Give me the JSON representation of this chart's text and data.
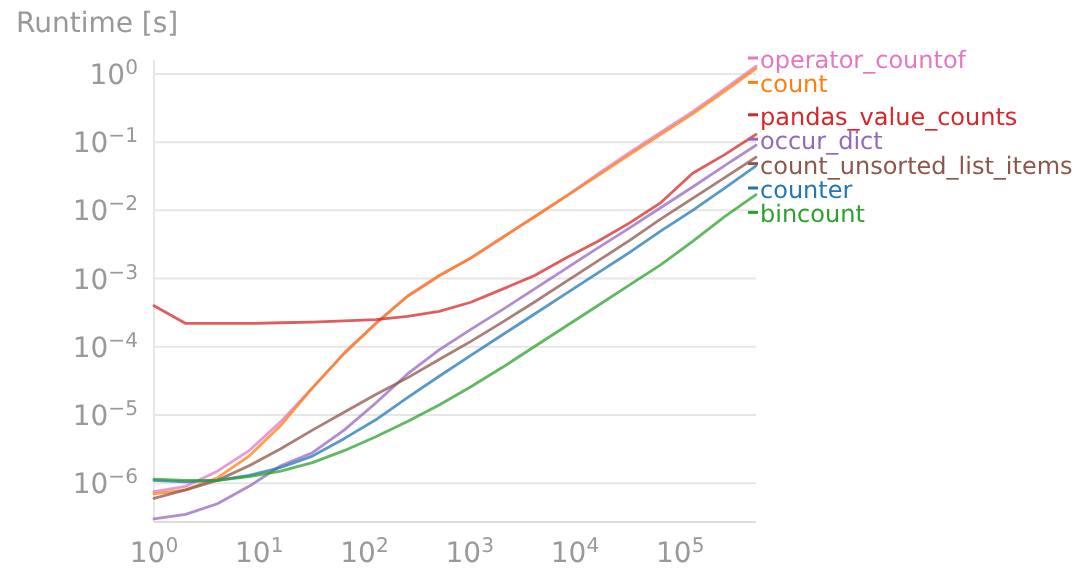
{
  "chart_data": {
    "type": "line",
    "title": "Runtime [s]",
    "log": "xy",
    "grid": "y",
    "legend": "right",
    "line_style": "solid",
    "marker": "none",
    "x": [
      1,
      2,
      4,
      8,
      16,
      32,
      64,
      128,
      256,
      512,
      1024,
      2048,
      4096,
      8192,
      16384,
      32768,
      65536,
      131072,
      262144,
      524288
    ],
    "xlim": [
      1,
      524288
    ],
    "ylim": [
      2.7e-07,
      1.6
    ],
    "xticks": [
      {
        "value": 1,
        "label": "10$^{0}$"
      },
      {
        "value": 10,
        "label": "10$^{1}$"
      },
      {
        "value": 100,
        "label": "10$^{2}$"
      },
      {
        "value": 1000,
        "label": "10$^{3}$"
      },
      {
        "value": 10000,
        "label": "10$^{4}$"
      },
      {
        "value": 100000,
        "label": "10$^{5}$"
      }
    ],
    "yticks": [
      {
        "value": 1e-06,
        "label": "10$^{−6}$"
      },
      {
        "value": 1e-05,
        "label": "10$^{−5}$"
      },
      {
        "value": 0.0001,
        "label": "10$^{−4}$"
      },
      {
        "value": 0.001,
        "label": "10$^{−3}$"
      },
      {
        "value": 0.01,
        "label": "10$^{−2}$"
      },
      {
        "value": 0.1,
        "label": "10$^{−1}$"
      },
      {
        "value": 1,
        "label": "10$^{0}$"
      }
    ],
    "series": [
      {
        "name": "operator_countof",
        "color": "#e377c2",
        "values": [
          7.5e-07,
          9e-07,
          1.5e-06,
          3e-06,
          8e-06,
          2.5e-05,
          8e-05,
          0.00022,
          0.00055,
          0.0011,
          0.002,
          0.004,
          0.008,
          0.016,
          0.034,
          0.07,
          0.14,
          0.28,
          0.6,
          1.3
        ]
      },
      {
        "name": "count",
        "color": "#ff7f0e",
        "values": [
          7e-07,
          8e-07,
          1.2e-06,
          2.5e-06,
          7e-06,
          2.5e-05,
          8e-05,
          0.00022,
          0.00055,
          0.0011,
          0.002,
          0.004,
          0.008,
          0.016,
          0.032,
          0.065,
          0.13,
          0.26,
          0.55,
          1.2
        ]
      },
      {
        "name": "pandas_value_counts",
        "color": "#d62728",
        "values": [
          0.0004,
          0.00022,
          0.00022,
          0.00022,
          0.000225,
          0.00023,
          0.00024,
          0.00025,
          0.00028,
          0.00033,
          0.00045,
          0.0007,
          0.0011,
          0.002,
          0.0035,
          0.0065,
          0.013,
          0.035,
          0.065,
          0.13
        ]
      },
      {
        "name": "occur_dict",
        "color": "#9467bd",
        "values": [
          3e-07,
          3.5e-07,
          5e-07,
          9e-07,
          1.8e-06,
          2.8e-06,
          6e-06,
          1.5e-05,
          4e-05,
          9e-05,
          0.00018,
          0.00035,
          0.0007,
          0.0014,
          0.0028,
          0.0055,
          0.011,
          0.022,
          0.045,
          0.09
        ]
      },
      {
        "name": "count_unsorted_list_items",
        "color": "#8c564b",
        "values": [
          6e-07,
          8e-07,
          1.1e-06,
          1.8e-06,
          3.2e-06,
          6e-06,
          1.1e-05,
          2e-05,
          3.5e-05,
          6.5e-05,
          0.00012,
          0.00023,
          0.00045,
          0.0009,
          0.0018,
          0.0036,
          0.0075,
          0.015,
          0.03,
          0.06
        ]
      },
      {
        "name": "counter",
        "color": "#1f77b4",
        "values": [
          1.1e-06,
          1.05e-06,
          1.1e-06,
          1.3e-06,
          1.7e-06,
          2.5e-06,
          4.5e-06,
          8.5e-06,
          1.8e-05,
          3.7e-05,
          7.5e-05,
          0.00015,
          0.0003,
          0.0006,
          0.0012,
          0.0024,
          0.005,
          0.01,
          0.021,
          0.045
        ]
      },
      {
        "name": "bincount",
        "color": "#2ca02c",
        "values": [
          1.15e-06,
          1.1e-06,
          1.1e-06,
          1.25e-06,
          1.5e-06,
          2e-06,
          3e-06,
          4.8e-06,
          8e-06,
          1.4e-05,
          2.6e-05,
          5e-05,
          0.0001,
          0.0002,
          0.0004,
          0.0008,
          0.0016,
          0.0035,
          0.008,
          0.017
        ]
      }
    ]
  }
}
